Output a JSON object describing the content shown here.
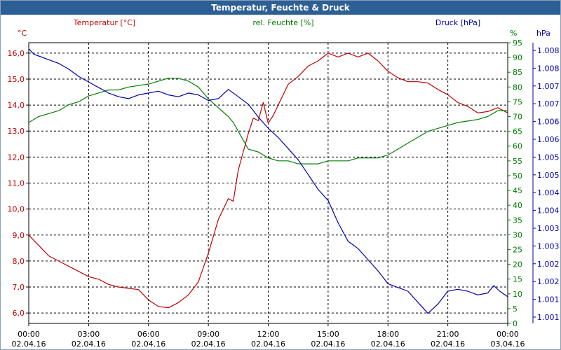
{
  "window": {
    "title": "Temperatur, Feuchte & Druck"
  },
  "chart_data": {
    "type": "line",
    "title": "Temperatur, Feuchte & Druck",
    "grid": true,
    "colors": {
      "temperature": "#c00000",
      "humidity": "#008000",
      "pressure": "#0000b0",
      "grid": "#000000",
      "axis_text": "#000000"
    },
    "axes": {
      "x": {
        "range": [
          "02.04.16 00:00",
          "03.04.16 00:00"
        ],
        "ticks": [
          {
            "time": "00:00",
            "date": "02.04.16"
          },
          {
            "time": "03:00",
            "date": "02.04.16"
          },
          {
            "time": "06:00",
            "date": "02.04.16"
          },
          {
            "time": "09:00",
            "date": "02.04.16"
          },
          {
            "time": "12:00",
            "date": "02.04.16"
          },
          {
            "time": "15:00",
            "date": "02.04.16"
          },
          {
            "time": "18:00",
            "date": "02.04.16"
          },
          {
            "time": "21:00",
            "date": "02.04.16"
          },
          {
            "time": "00:00",
            "date": "03.04.16"
          }
        ]
      },
      "left": {
        "label": "Temperatur [°C]",
        "unit": "°C",
        "range": [
          5.6,
          16.4
        ],
        "ticks": [
          "6,0",
          "7,0",
          "8,0",
          "9,0",
          "10,0",
          "11,0",
          "12,0",
          "13,0",
          "14,0",
          "15,0",
          "16,0"
        ]
      },
      "right1": {
        "label": "rel. Feuchte [%]",
        "unit": "%",
        "range": [
          0,
          95
        ],
        "ticks": [
          "0",
          "5",
          "10",
          "15",
          "20",
          "25",
          "30",
          "35",
          "40",
          "45",
          "50",
          "55",
          "60",
          "65",
          "70",
          "75",
          "80",
          "85",
          "90",
          "95"
        ]
      },
      "right2": {
        "label": "Druck [hPa]",
        "unit": "hPa",
        "range": [
          1000.88,
          1008.46
        ],
        "ticks": [
          "1.001",
          "1.001",
          "1.002",
          "1.002",
          "1.003",
          "1.003",
          "1.004",
          "1.004",
          "1.005",
          "1.005",
          "1.006",
          "1.006",
          "1.007",
          "1.007",
          "1.008",
          "1.008"
        ]
      }
    },
    "series": [
      {
        "name": "Temperatur [°C]",
        "axis": "left",
        "color": "#c00000",
        "x_hours": [
          0,
          0.5,
          1,
          1.5,
          2,
          2.5,
          3,
          3.5,
          4,
          4.5,
          5,
          5.5,
          6,
          6.5,
          7,
          7.5,
          8,
          8.5,
          9,
          9.5,
          10,
          10.25,
          10.5,
          11,
          11.25,
          11.5,
          11.75,
          12,
          12.25,
          12.5,
          13,
          13.5,
          14,
          14.5,
          15,
          15.5,
          16,
          16.5,
          17,
          17.5,
          18,
          18.5,
          19,
          19.5,
          20,
          20.5,
          21,
          21.5,
          22,
          22.5,
          23,
          23.5,
          24
        ],
        "values": [
          9.0,
          8.6,
          8.2,
          8.0,
          7.8,
          7.6,
          7.4,
          7.3,
          7.1,
          7.0,
          6.95,
          6.9,
          6.5,
          6.25,
          6.2,
          6.4,
          6.7,
          7.2,
          8.3,
          9.6,
          10.4,
          10.3,
          11.5,
          12.9,
          13.5,
          13.4,
          14.1,
          13.3,
          13.6,
          14.0,
          14.8,
          15.1,
          15.5,
          15.7,
          16.0,
          15.85,
          16.0,
          15.85,
          16.0,
          15.7,
          15.3,
          15.05,
          14.9,
          14.9,
          14.85,
          14.6,
          14.4,
          14.1,
          13.95,
          13.7,
          13.75,
          13.9,
          13.7
        ]
      },
      {
        "name": "rel. Feuchte [%]",
        "axis": "right1",
        "color": "#008000",
        "x_hours": [
          0,
          0.5,
          1,
          1.5,
          2,
          2.5,
          3,
          3.5,
          4,
          4.5,
          5,
          5.5,
          6,
          6.5,
          7,
          7.5,
          8,
          8.5,
          9,
          9.5,
          10,
          10.25,
          10.5,
          11,
          11.5,
          12,
          12.5,
          13,
          13.5,
          14,
          14.5,
          15,
          15.5,
          16,
          16.5,
          17,
          17.5,
          18,
          18.5,
          19,
          19.5,
          20,
          20.5,
          21,
          21.5,
          22,
          22.5,
          23,
          23.5,
          24
        ],
        "values": [
          68,
          70,
          71,
          72,
          74,
          75,
          77,
          78,
          79,
          79,
          80,
          80.5,
          81,
          82,
          83,
          83,
          82,
          80,
          76,
          73,
          70,
          68,
          65,
          59,
          58,
          56,
          55,
          55,
          54,
          54,
          54,
          55,
          55,
          55,
          56,
          56,
          56,
          57,
          59,
          61,
          63,
          65,
          66,
          67,
          68,
          68.5,
          69,
          70,
          72,
          72
        ]
      },
      {
        "name": "Druck [hPa]",
        "axis": "right2",
        "color": "#0000b0",
        "x_hours": [
          0,
          0.25,
          0.5,
          1,
          1.5,
          2,
          2.5,
          3,
          3.5,
          4,
          4.5,
          5,
          5.5,
          6,
          6.5,
          7,
          7.5,
          8,
          8.5,
          9,
          9.5,
          10,
          10.5,
          11,
          11.5,
          12,
          12.5,
          13,
          13.5,
          14,
          14.5,
          15,
          15.5,
          16,
          16.5,
          17,
          17.5,
          18,
          18.5,
          19,
          19.5,
          20,
          20.5,
          21,
          21.5,
          22,
          22.5,
          23,
          23.3,
          23.6,
          24
        ],
        "values": [
          1008.3,
          1008.15,
          1008.1,
          1008.0,
          1007.9,
          1007.75,
          1007.55,
          1007.4,
          1007.25,
          1007.1,
          1007.0,
          1006.95,
          1007.05,
          1007.1,
          1007.15,
          1007.05,
          1007.0,
          1007.1,
          1007.05,
          1006.9,
          1006.95,
          1007.2,
          1007.0,
          1006.8,
          1006.45,
          1006.15,
          1005.9,
          1005.6,
          1005.3,
          1004.9,
          1004.5,
          1004.2,
          1003.6,
          1003.1,
          1002.9,
          1002.6,
          1002.3,
          1001.95,
          1001.85,
          1001.75,
          1001.45,
          1001.15,
          1001.4,
          1001.75,
          1001.8,
          1001.75,
          1001.65,
          1001.7,
          1001.9,
          1001.75,
          1001.6
        ]
      }
    ]
  }
}
